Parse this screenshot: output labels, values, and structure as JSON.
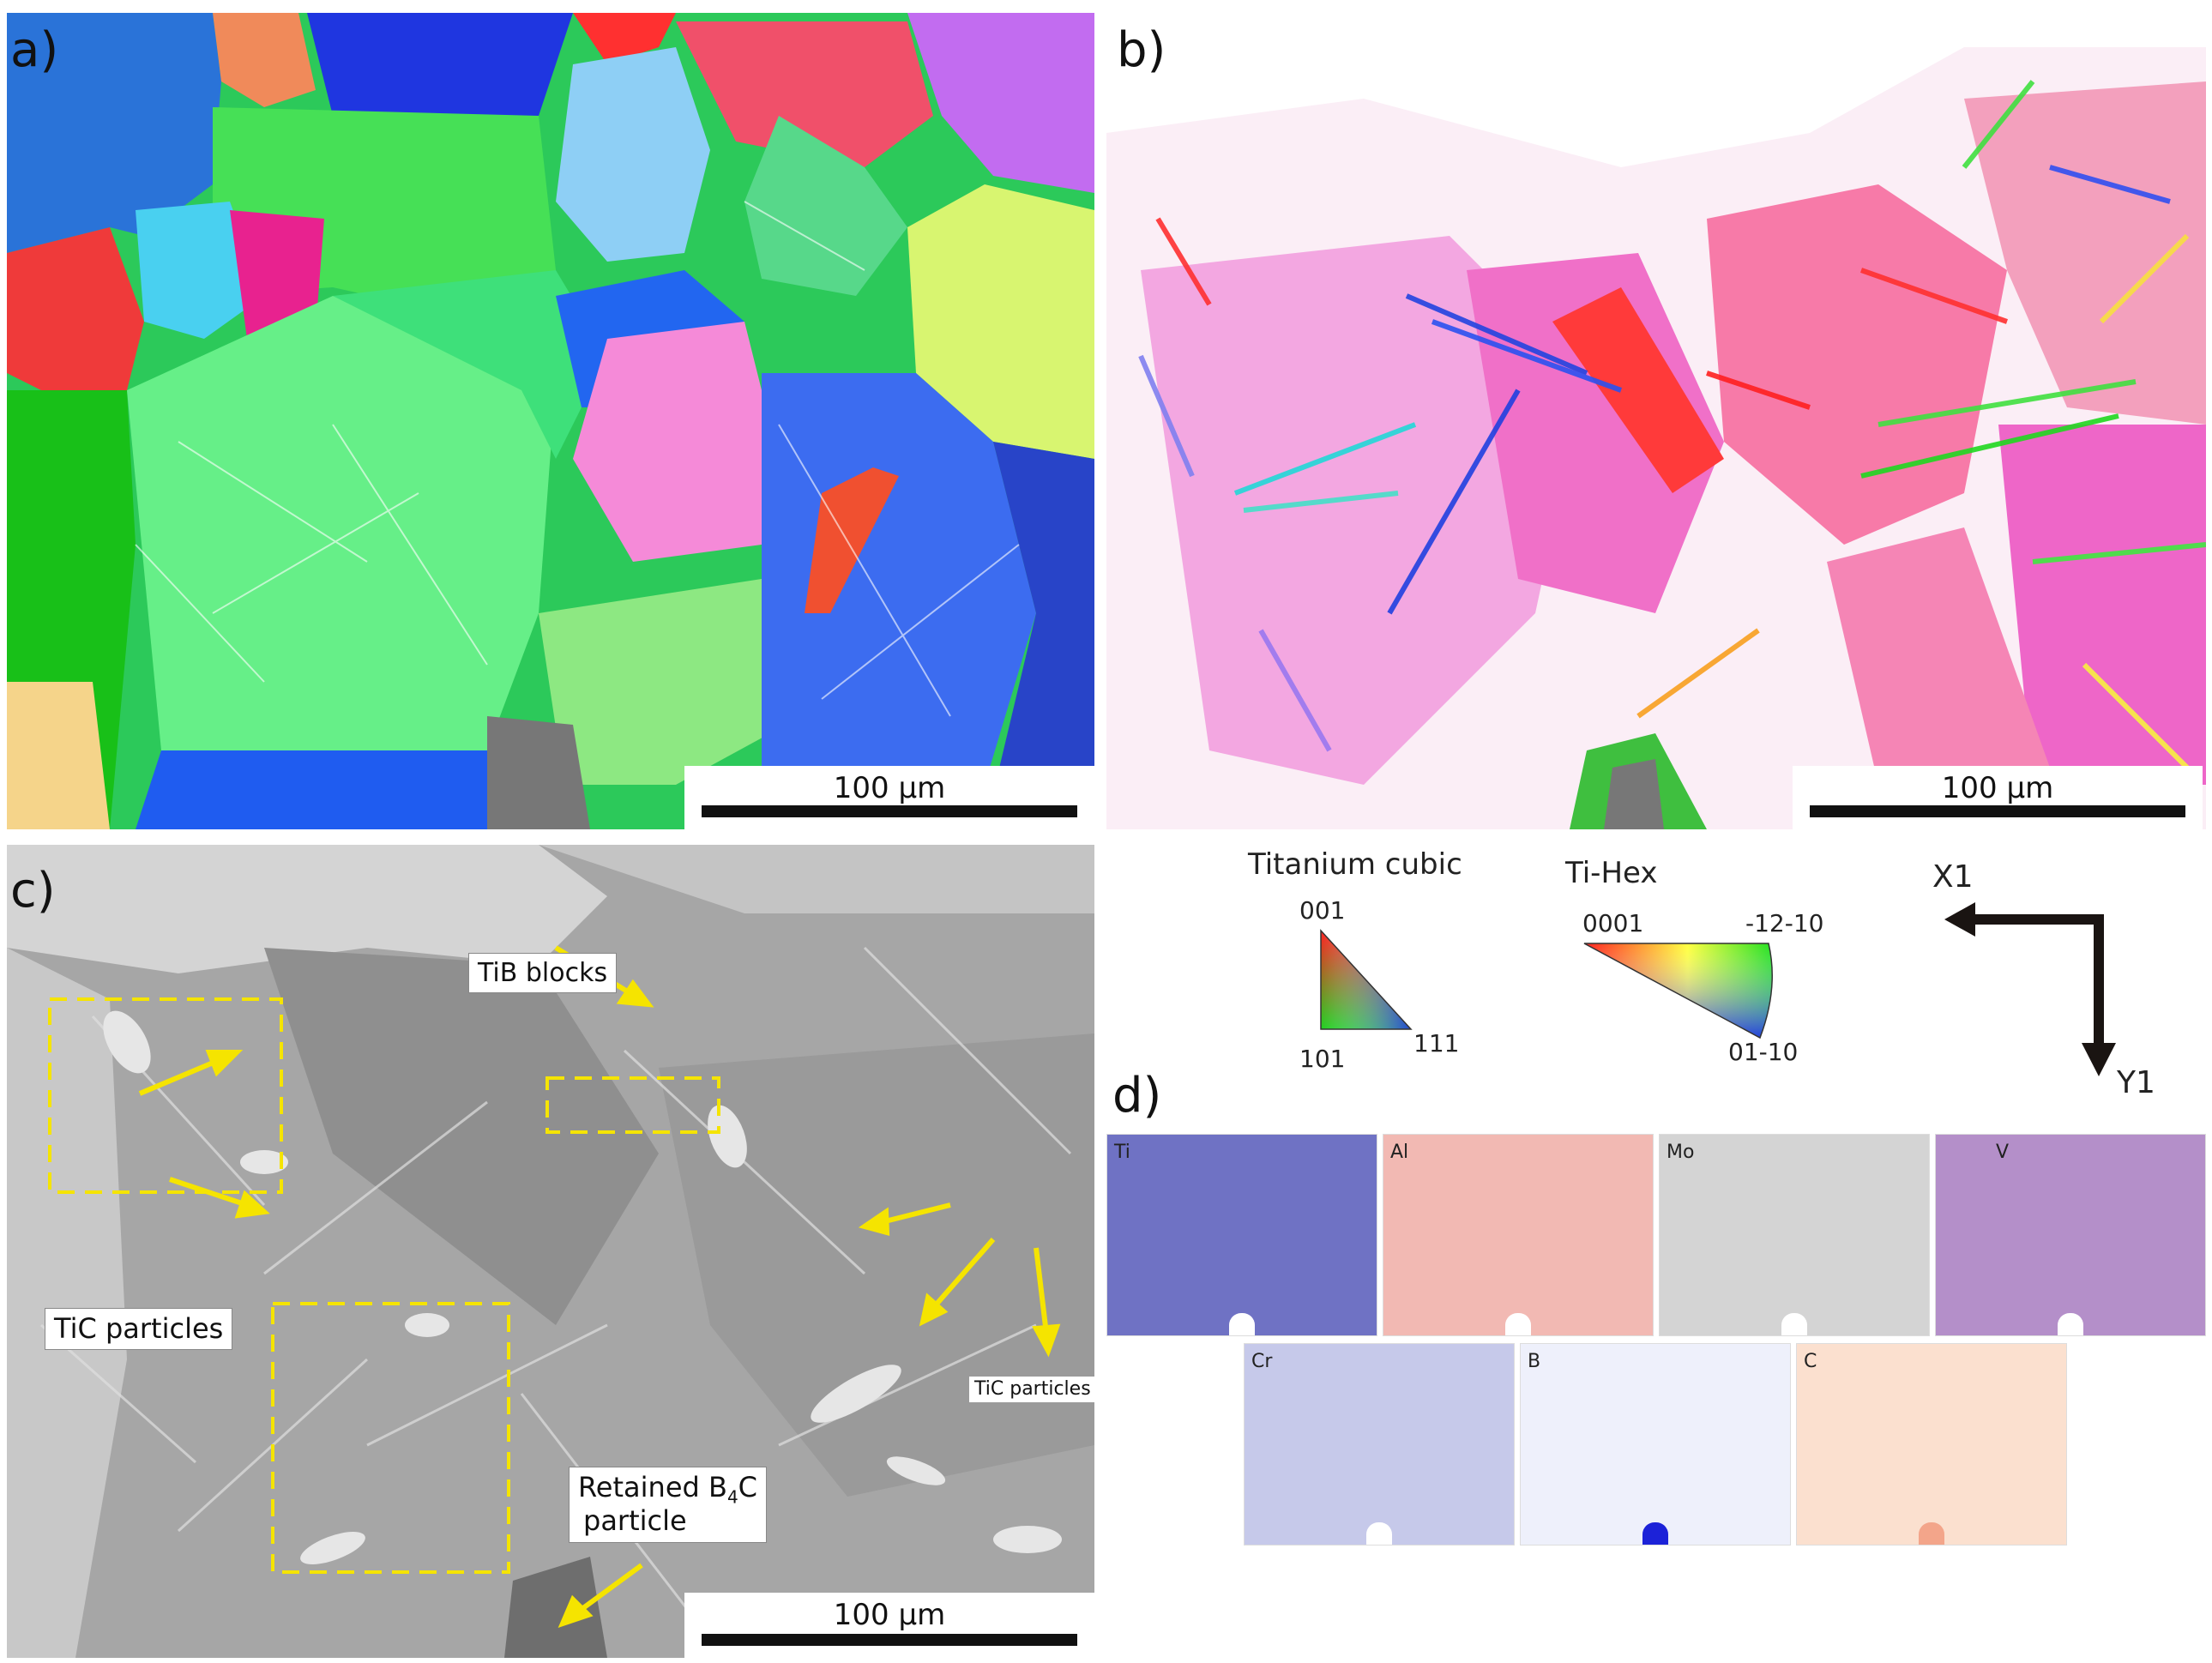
{
  "panels": {
    "a": {
      "letter": "a)",
      "scalebar": "100 μm"
    },
    "b": {
      "letter": "b)",
      "scalebar": "100 μm"
    },
    "c": {
      "letter": "c)",
      "scalebar": "100 μm",
      "annotations": {
        "tib_blocks": "TiB blocks",
        "tic_particles": "TiC particles",
        "tic_particles_small": "TiC particles",
        "retained_line1_pre": "Retained B",
        "retained_sub": "4",
        "retained_line1_post": "C",
        "retained_line2": "particle"
      }
    },
    "d": {
      "letter": "d)",
      "maps": [
        {
          "label": "Ti",
          "color": "#6f72c4"
        },
        {
          "label": "Al",
          "color": "#f2b9b3"
        },
        {
          "label": "Mo",
          "color": "#d4d4d4"
        },
        {
          "label": "V",
          "color": "#b48fc9"
        },
        {
          "label": "Cr",
          "color": "#c6c9ea"
        },
        {
          "label": "B",
          "color": "#eef0fb"
        },
        {
          "label": "C",
          "color": "#fbe0cf"
        }
      ]
    }
  },
  "legend": {
    "cubic": {
      "title": "Titanium cubic",
      "top": "001",
      "left": "101",
      "right": "111"
    },
    "hex": {
      "title": "Ti-Hex",
      "left": "0001",
      "right": "-12-10",
      "bottom": "01-10"
    },
    "axes": {
      "x": "X1",
      "y": "Y1"
    }
  }
}
